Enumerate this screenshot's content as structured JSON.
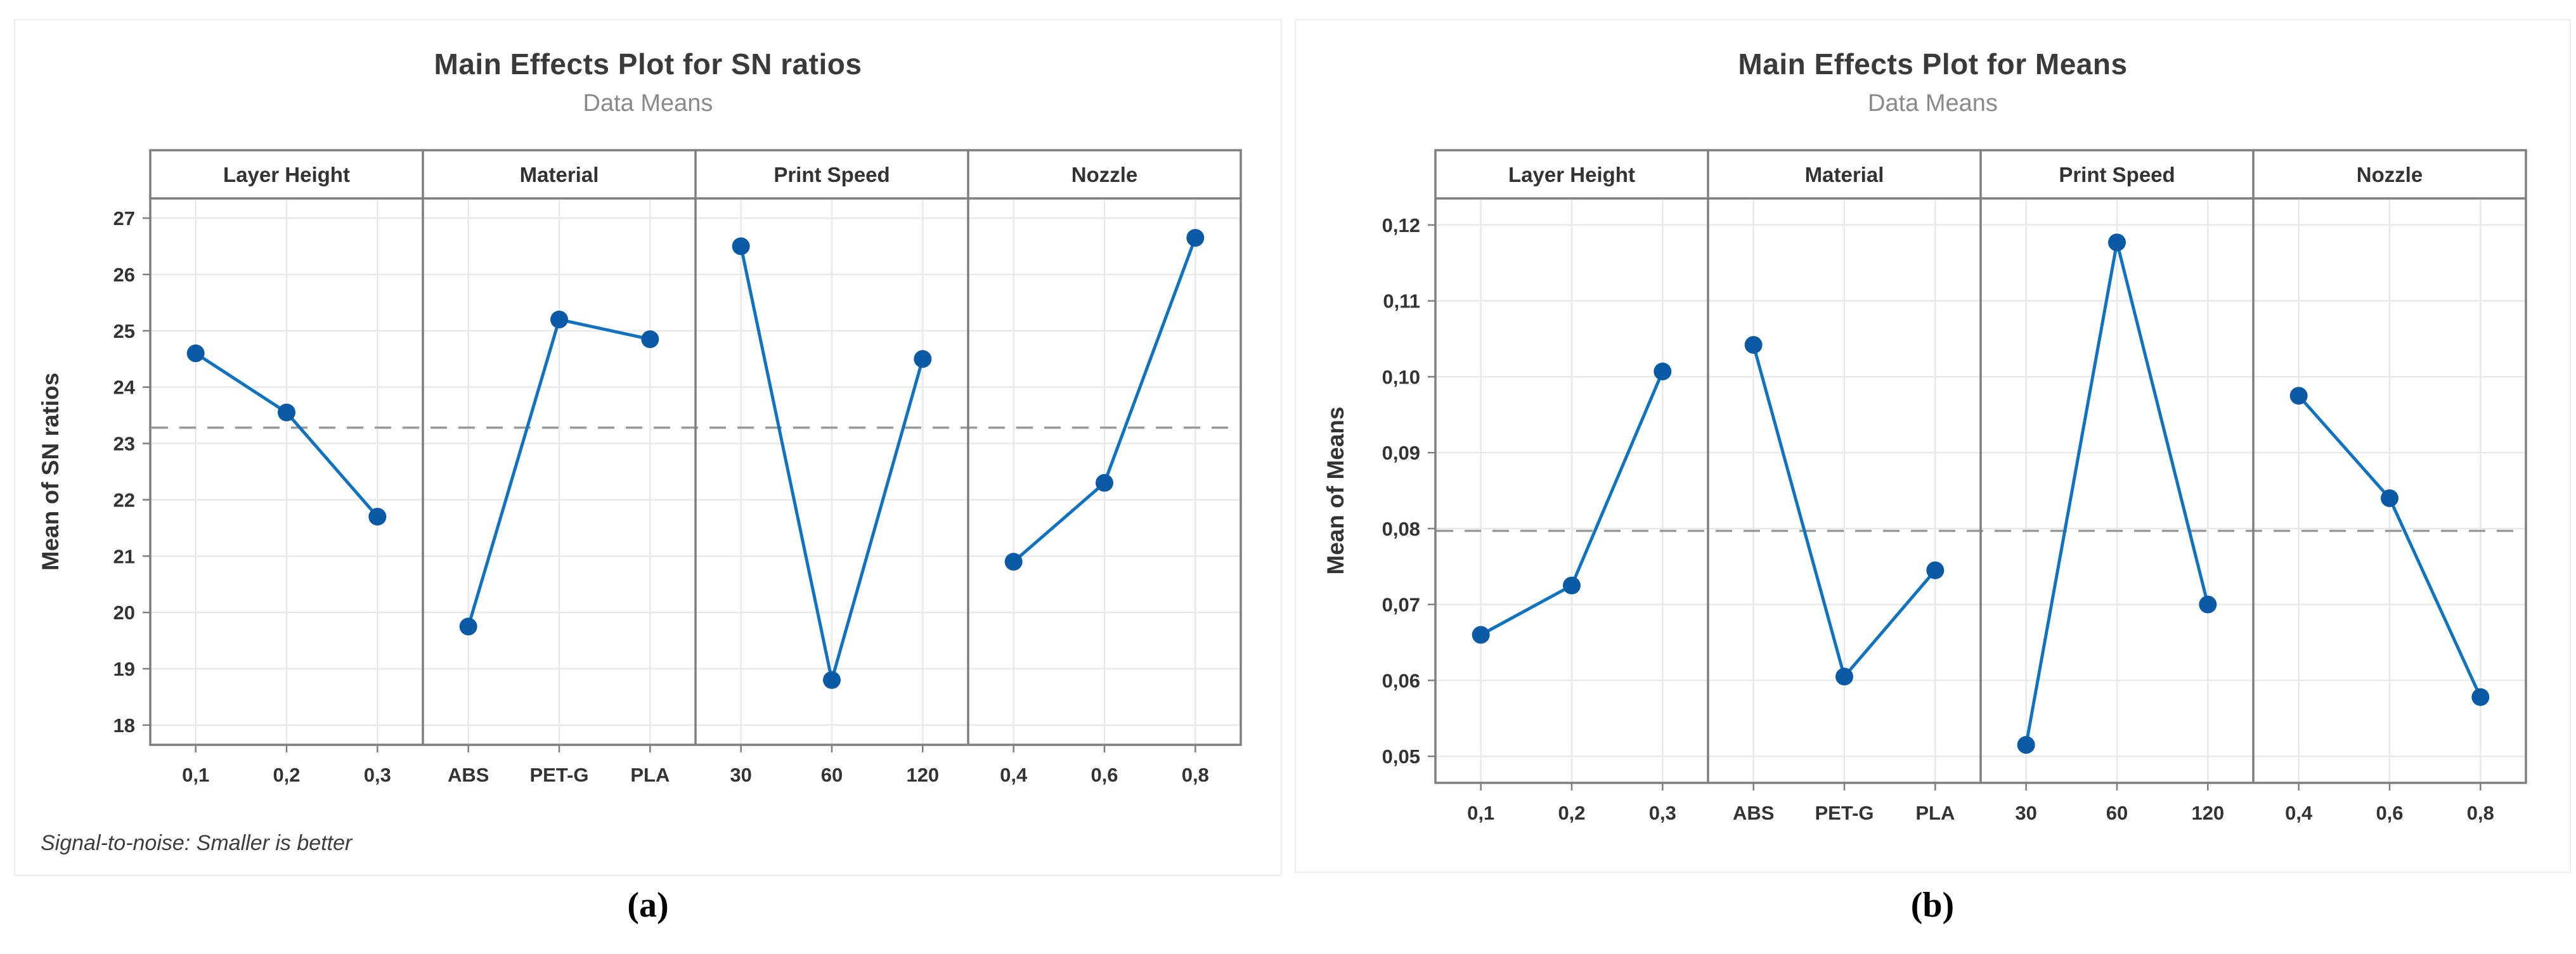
{
  "colors": {
    "line": "#1173BF",
    "marker": "#0B5AA5",
    "grid": "#E9E9E9",
    "frame": "#7E7E7E",
    "ref": "#999999",
    "text": "#333333",
    "subtitle": "#8A8A8A",
    "card_border": "#EDEDED"
  },
  "chart_data": [
    {
      "type": "line",
      "title": "Main Effects Plot for SN ratios",
      "subtitle": "Data Means",
      "ylabel": "Mean of SN ratios",
      "footnote": "Signal-to-noise: Smaller is better",
      "caption": "(a)",
      "ylim": [
        17.65,
        27.35
      ],
      "grid": true,
      "reference_line": 23.28,
      "yticks": [
        {
          "v": 27,
          "label": "27"
        },
        {
          "v": 26,
          "label": "26"
        },
        {
          "v": 25,
          "label": "25"
        },
        {
          "v": 24,
          "label": "24"
        },
        {
          "v": 23,
          "label": "23"
        },
        {
          "v": 22,
          "label": "22"
        },
        {
          "v": 21,
          "label": "21"
        },
        {
          "v": 20,
          "label": "20"
        },
        {
          "v": 19,
          "label": "19"
        },
        {
          "v": 18,
          "label": "18"
        }
      ],
      "panels": [
        {
          "label": "Layer Height",
          "categories": [
            "0,1",
            "0,2",
            "0,3"
          ],
          "values": [
            24.6,
            23.55,
            21.7
          ]
        },
        {
          "label": "Material",
          "categories": [
            "ABS",
            "PET-G",
            "PLA"
          ],
          "values": [
            19.75,
            25.2,
            24.85
          ]
        },
        {
          "label": "Print Speed",
          "categories": [
            "30",
            "60",
            "120"
          ],
          "values": [
            26.5,
            18.8,
            24.5
          ]
        },
        {
          "label": "Nozzle",
          "categories": [
            "0,4",
            "0,6",
            "0,8"
          ],
          "values": [
            20.9,
            22.3,
            26.65
          ]
        }
      ]
    },
    {
      "type": "line",
      "title": "Main Effects Plot for Means",
      "subtitle": "Data Means",
      "ylabel": "Mean of Means",
      "caption": "(b)",
      "ylim": [
        0.0465,
        0.1235
      ],
      "grid": true,
      "reference_line": 0.0797,
      "yticks": [
        {
          "v": 0.12,
          "label": "0,12"
        },
        {
          "v": 0.11,
          "label": "0,11"
        },
        {
          "v": 0.1,
          "label": "0,10"
        },
        {
          "v": 0.09,
          "label": "0,09"
        },
        {
          "v": 0.08,
          "label": "0,08"
        },
        {
          "v": 0.07,
          "label": "0,07"
        },
        {
          "v": 0.06,
          "label": "0,06"
        },
        {
          "v": 0.05,
          "label": "0,05"
        }
      ],
      "panels": [
        {
          "label": "Layer Height",
          "categories": [
            "0,1",
            "0,2",
            "0,3"
          ],
          "values": [
            0.066,
            0.0725,
            0.1007
          ]
        },
        {
          "label": "Material",
          "categories": [
            "ABS",
            "PET-G",
            "PLA"
          ],
          "values": [
            0.1042,
            0.0605,
            0.0745
          ]
        },
        {
          "label": "Print Speed",
          "categories": [
            "30",
            "60",
            "120"
          ],
          "values": [
            0.0515,
            0.1177,
            0.07
          ]
        },
        {
          "label": "Nozzle",
          "categories": [
            "0,4",
            "0,6",
            "0,8"
          ],
          "values": [
            0.0975,
            0.084,
            0.0578
          ]
        }
      ]
    }
  ]
}
